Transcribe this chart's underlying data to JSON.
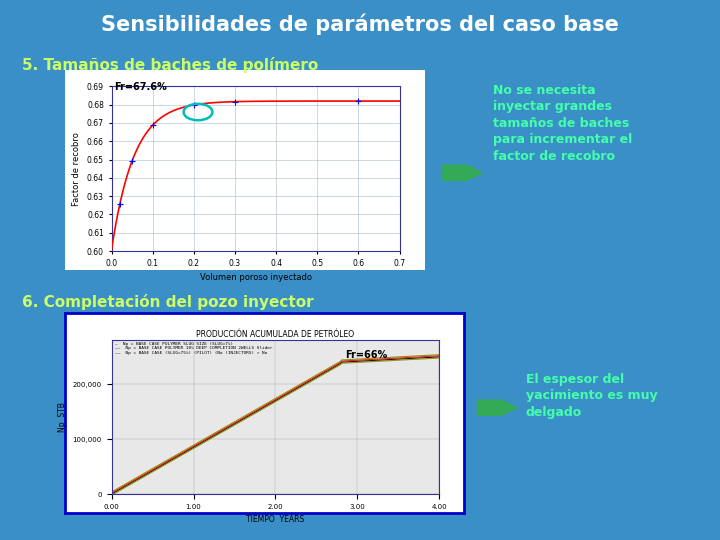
{
  "background_color": "#3a8fc7",
  "title": "Sensibilidades de parámetros del caso base",
  "title_color": "#ffffff",
  "title_fontsize": 15,
  "section5_label": "5. Tamaños de baches de polímero",
  "section5_color": "#ccff66",
  "section5_fontsize": 11,
  "section6_label": "6. Completación del pozo inyector",
  "section6_color": "#ccff66",
  "section6_fontsize": 11,
  "plot1_xlabel": "Volumen poroso inyectado",
  "plot1_ylabel": "Factor de recobro",
  "plot1_annotation": "Fr=67.6%",
  "plot1_xlim": [
    0,
    0.7
  ],
  "plot1_ylim": [
    0.6,
    0.69
  ],
  "plot1_yticks": [
    0.6,
    0.61,
    0.62,
    0.63,
    0.64,
    0.65,
    0.66,
    0.67,
    0.68,
    0.69
  ],
  "plot1_xticks": [
    0,
    0.1,
    0.2,
    0.3,
    0.4,
    0.5,
    0.6,
    0.7
  ],
  "plot1_curve_color": "red",
  "plot1_bg": "#ffffff",
  "plot1_outer_bg": "#dddddd",
  "plot2_annotation": "Fr=66%",
  "plot2_border_color": "#0000cc",
  "plot2_xlabel": "TIEMPO  YEARS",
  "plot2_ylabel": "Np  STB",
  "plot2_title": "PRODUCCIÓN ACUMULADA DE PETRÓLEO",
  "plot2_bg": "#f0f0f0",
  "arrow_color": "#33aa55",
  "text1_lines": [
    "No se necesita",
    "inyectar grandes",
    "tamaños de baches",
    "para incrementar el",
    "factor de recobro"
  ],
  "text1_color": "#44ffaa",
  "text1_fontsize": 9,
  "text2_lines": [
    "El espesor del",
    "yacimiento es muy",
    "delgado"
  ],
  "text2_color": "#44ffaa",
  "text2_fontsize": 9
}
